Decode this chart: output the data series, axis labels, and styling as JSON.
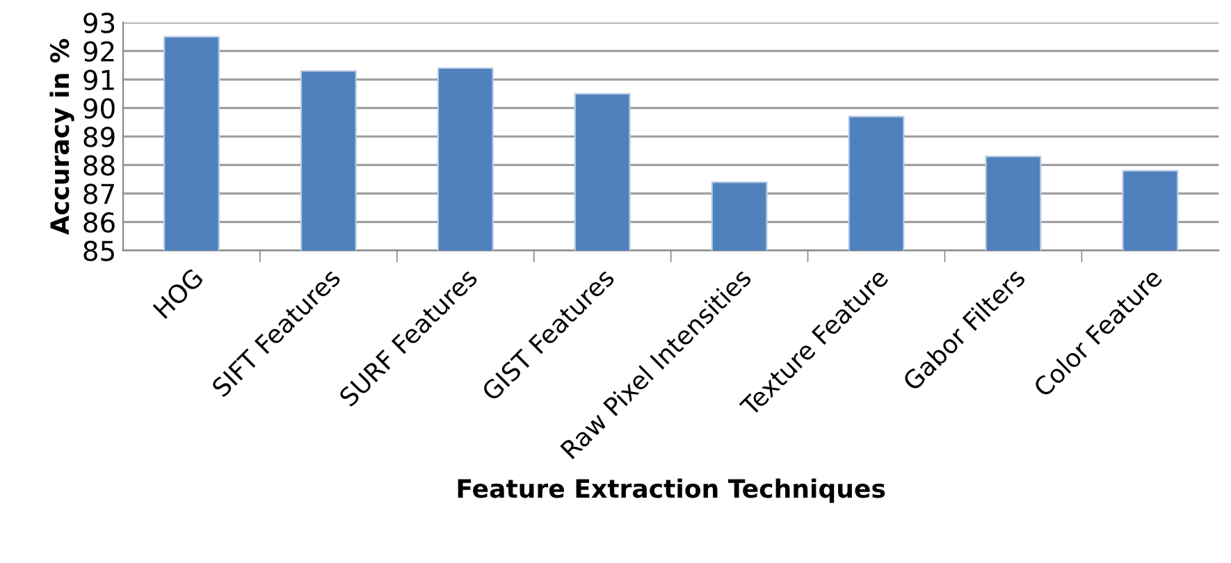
{
  "chart_data": {
    "type": "bar",
    "xlabel": "Feature Extraction Techniques",
    "ylabel": "Accuracy in %",
    "categories": [
      "HOG",
      "SIFT Features",
      "SURF Features",
      "GIST Features",
      "Raw Pixel Intensities",
      "Texture Feature",
      "Gabor Filters",
      "Color Feature"
    ],
    "values": [
      92.5,
      91.3,
      91.4,
      90.5,
      87.4,
      89.7,
      88.3,
      87.8
    ],
    "color": "#4f81bd",
    "ylim": [
      85,
      93
    ],
    "yticks": [
      85,
      86,
      87,
      88,
      89,
      90,
      91,
      92,
      93
    ],
    "grid": "y",
    "legend": false
  }
}
